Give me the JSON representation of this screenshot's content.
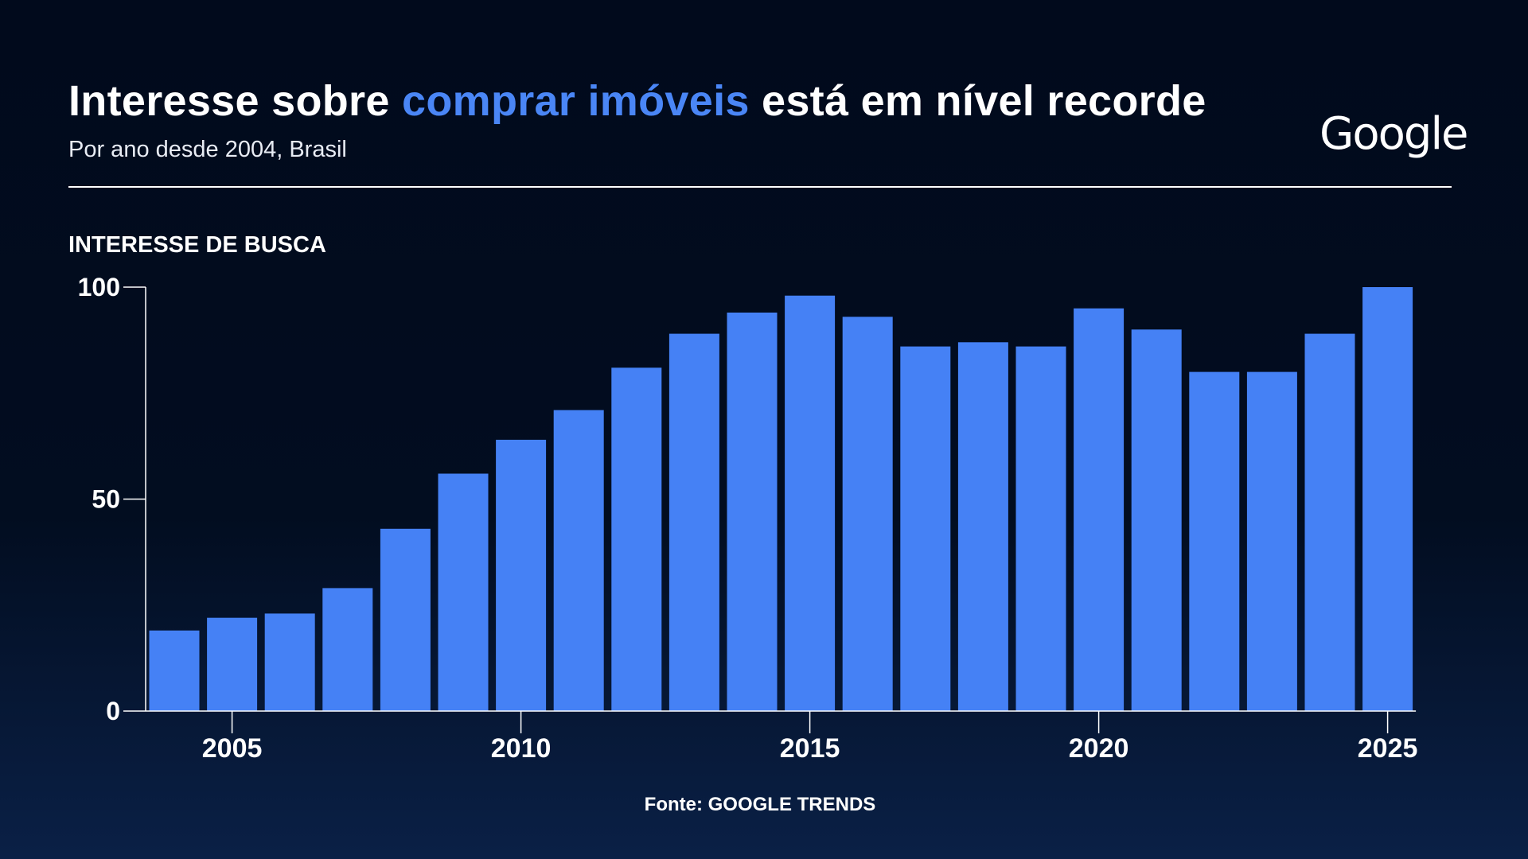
{
  "header": {
    "title_part1": "Interesse sobre ",
    "title_highlight": "comprar imóveis",
    "title_part2": " está em nível recorde",
    "subtitle": "Por ano desde 2004, Brasil",
    "logo_text": "Google",
    "highlight_color": "#4a86f6"
  },
  "footer": {
    "source": "Fonte: GOOGLE TRENDS"
  },
  "chart_data": {
    "type": "bar",
    "ylabel": "INTERESSE DE BUSCA",
    "ylim": [
      0,
      100
    ],
    "y_ticks": [
      0,
      50,
      100
    ],
    "x_tick_labels": [
      "2005",
      "2010",
      "2015",
      "2020",
      "2025"
    ],
    "categories": [
      "2004",
      "2005",
      "2006",
      "2007",
      "2008",
      "2009",
      "2010",
      "2011",
      "2012",
      "2013",
      "2014",
      "2015",
      "2016",
      "2017",
      "2018",
      "2019",
      "2020",
      "2021",
      "2022",
      "2023",
      "2024",
      "2025"
    ],
    "values": [
      19,
      22,
      23,
      29,
      43,
      56,
      64,
      71,
      81,
      89,
      94,
      98,
      93,
      86,
      87,
      86,
      95,
      90,
      80,
      80,
      89,
      100
    ],
    "bar_color": "#4581f5",
    "grid": false
  }
}
